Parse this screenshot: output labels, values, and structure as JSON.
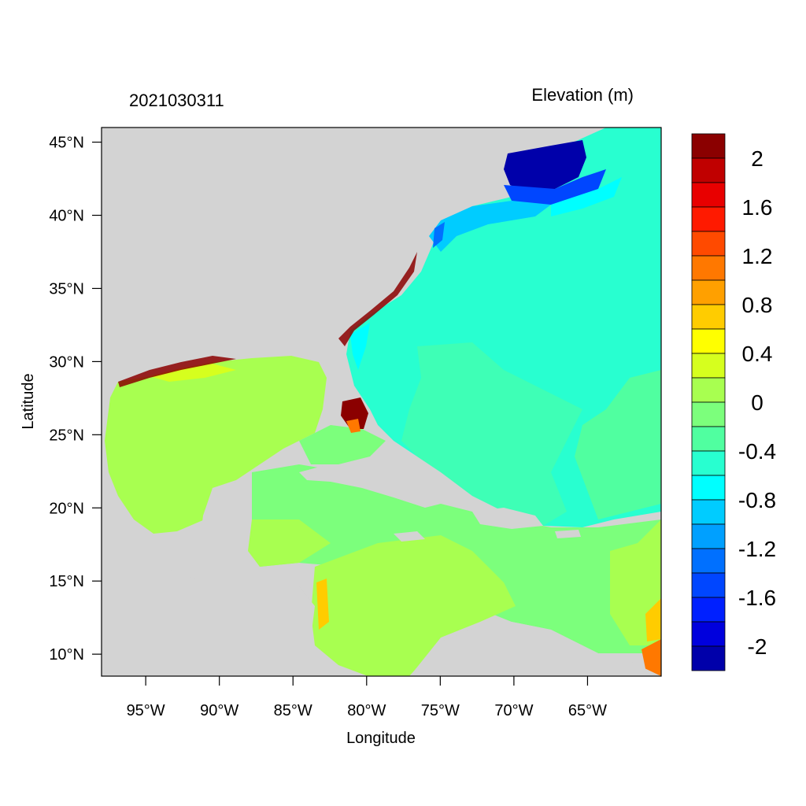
{
  "header": {
    "left_title": "2021030311",
    "right_title": "Elevation (m)"
  },
  "axes": {
    "xlabel": "Longitude",
    "ylabel": "Latitude",
    "x_ticks": [
      "95°W",
      "90°W",
      "85°W",
      "80°W",
      "75°W",
      "70°W",
      "65°W"
    ],
    "y_ticks": [
      "45°N",
      "40°N",
      "35°N",
      "30°N",
      "25°N",
      "20°N",
      "15°N",
      "10°N"
    ],
    "lon_range": [
      -98,
      -60
    ],
    "lat_range": [
      8.5,
      46
    ]
  },
  "colorbar": {
    "labels": [
      "2",
      "1.6",
      "1.2",
      "0.8",
      "0.4",
      "0",
      "-0.4",
      "-0.8",
      "-1.2",
      "-1.6",
      "-2"
    ],
    "colors": [
      "#8b0000",
      "#c00000",
      "#e80000",
      "#ff1a00",
      "#ff4a00",
      "#ff7800",
      "#ffa000",
      "#ffcc00",
      "#ffff00",
      "#d6ff1e",
      "#a8ff50",
      "#7cff7c",
      "#50ffa0",
      "#28ffd0",
      "#00ffff",
      "#00ccff",
      "#00a0ff",
      "#0070ff",
      "#0046ff",
      "#0020ff",
      "#0000dd",
      "#0000aa"
    ]
  },
  "colors": {
    "land": "#d3d3d3",
    "background": "#ffffff"
  }
}
